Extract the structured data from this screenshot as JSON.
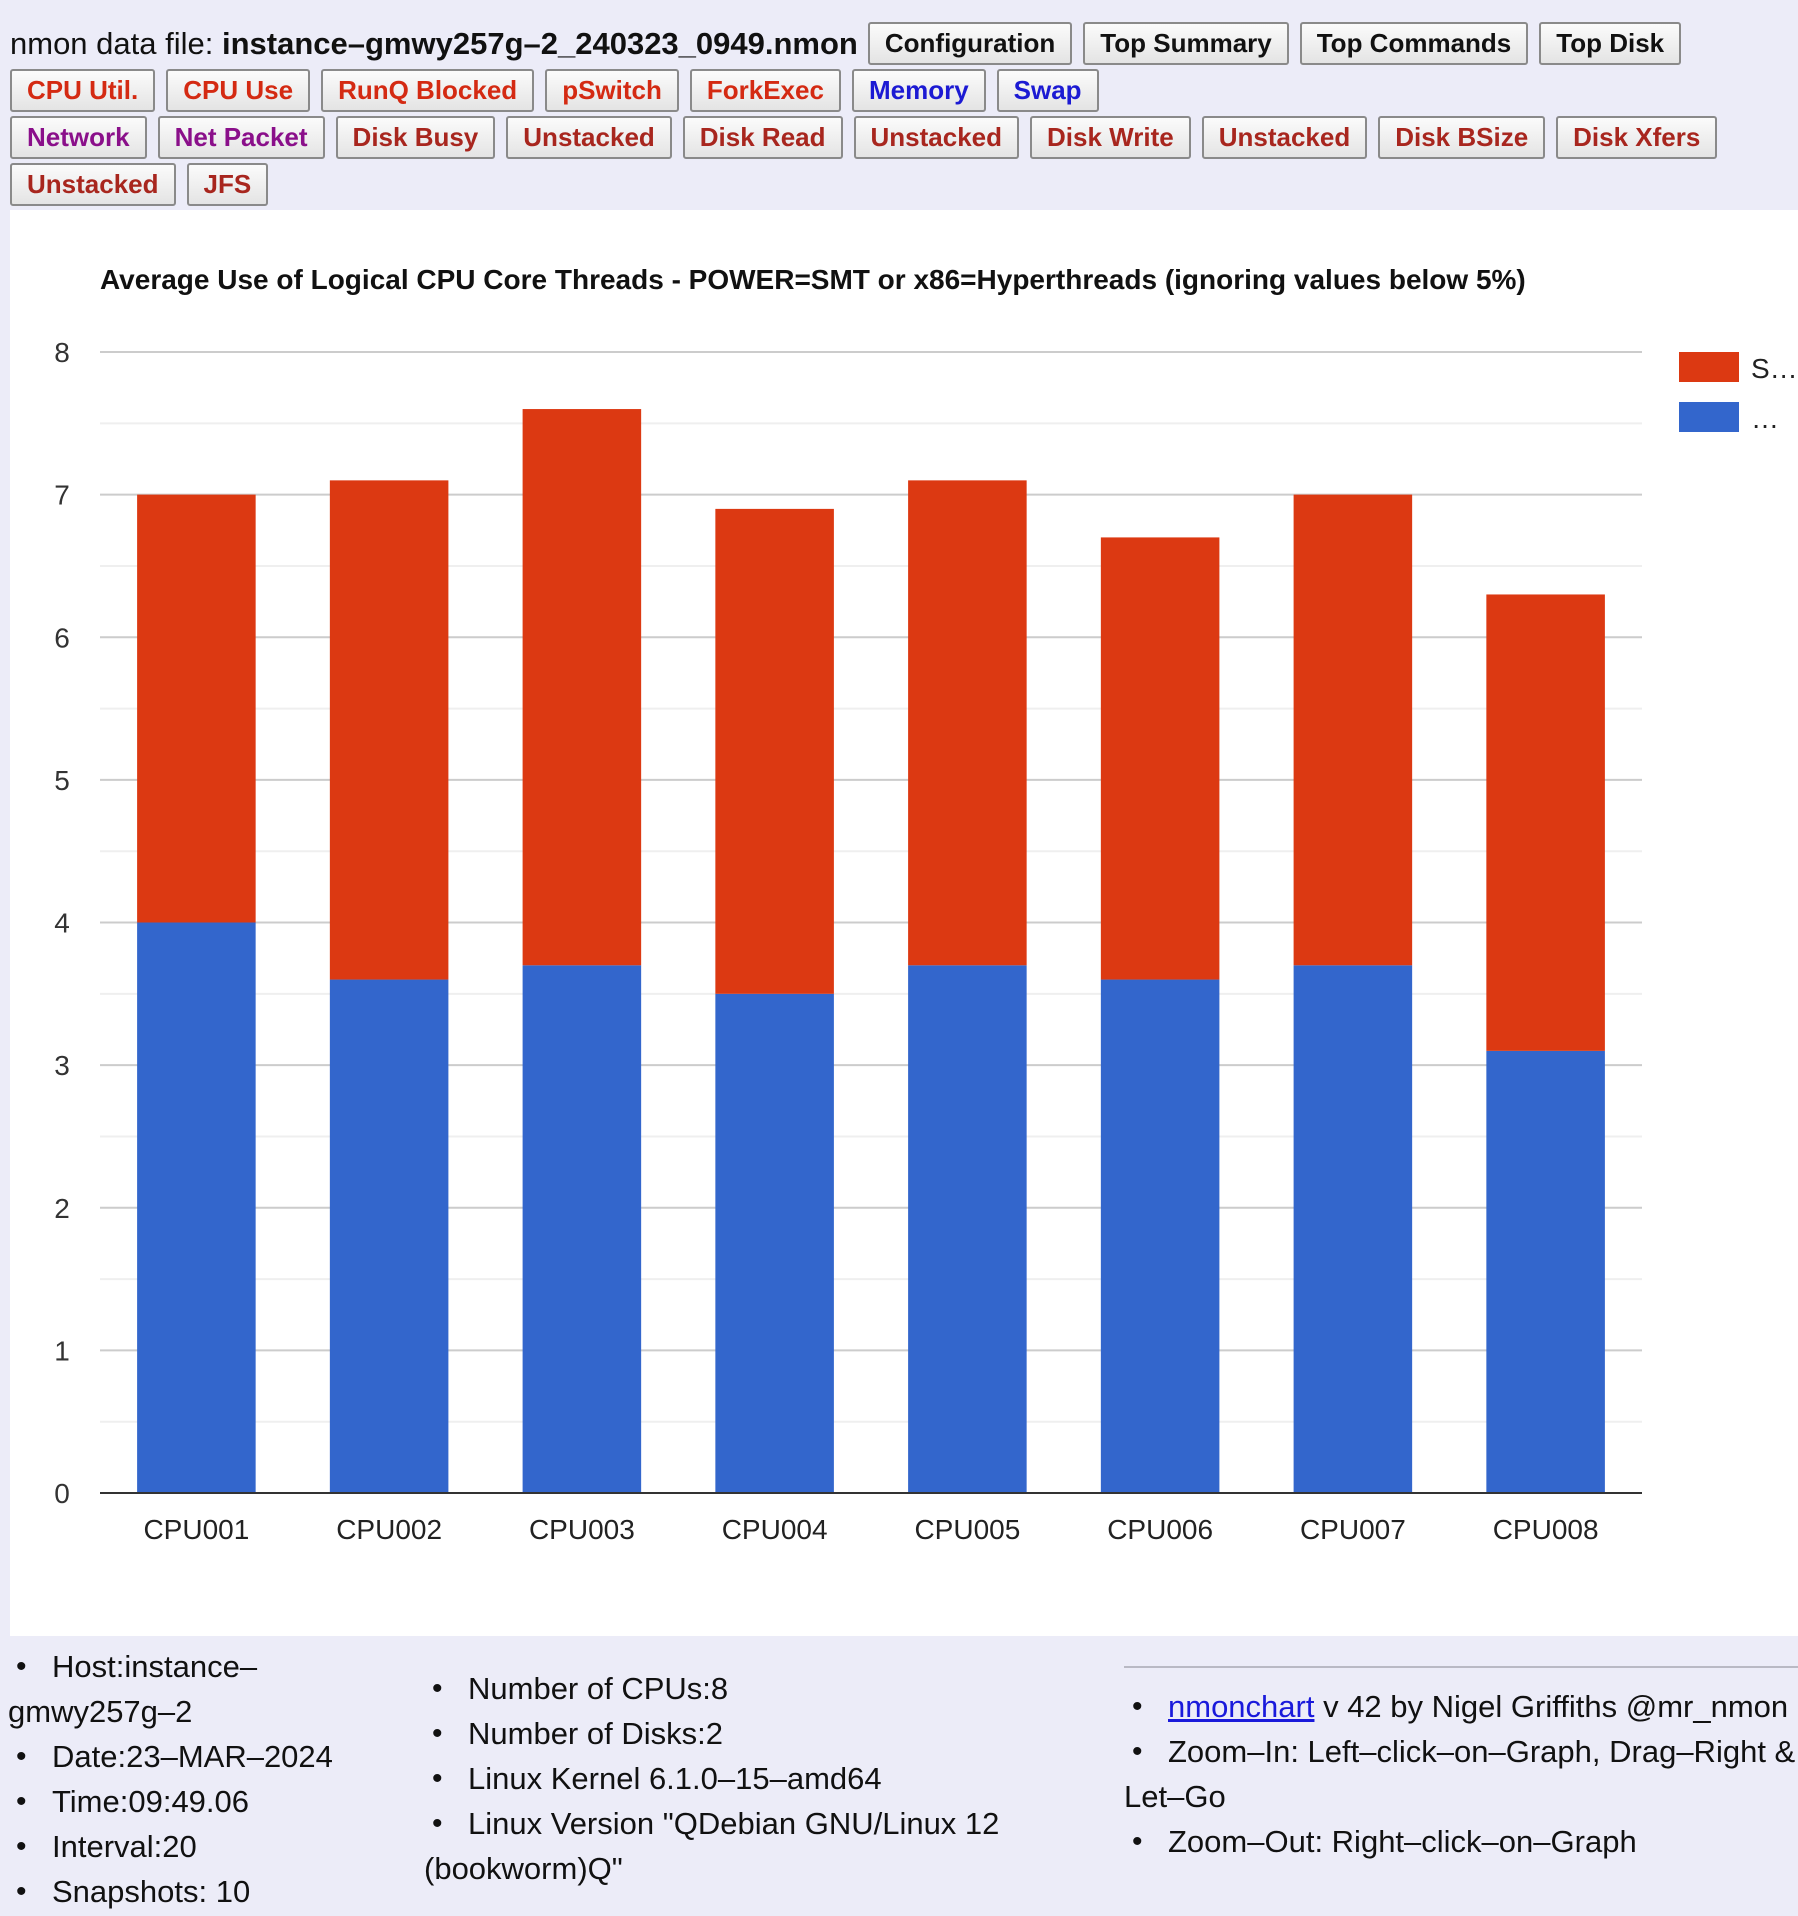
{
  "header": {
    "file_label": "nmon data file:",
    "file_name": "instance–gmwy257g–2_240323_0949.nmon",
    "buttons_row1": [
      {
        "label": "Configuration",
        "color": "#111111"
      },
      {
        "label": "Top Summary",
        "color": "#111111"
      },
      {
        "label": "Top Commands",
        "color": "#111111"
      },
      {
        "label": "Top Disk",
        "color": "#111111"
      }
    ],
    "buttons_row2": [
      {
        "label": "CPU Util.",
        "color": "#d42a12"
      },
      {
        "label": "CPU Use",
        "color": "#d42a12"
      },
      {
        "label": "RunQ Blocked",
        "color": "#d42a12"
      },
      {
        "label": "pSwitch",
        "color": "#d42a12"
      },
      {
        "label": "ForkExec",
        "color": "#d42a12"
      },
      {
        "label": "Memory",
        "color": "#1c1ad3"
      },
      {
        "label": "Swap",
        "color": "#1c1ad3"
      }
    ],
    "buttons_row3": [
      {
        "label": "Network",
        "color": "#8a0f8a"
      },
      {
        "label": "Net Packet",
        "color": "#8a0f8a"
      },
      {
        "label": "Disk Busy",
        "color": "#a8261e"
      },
      {
        "label": "Unstacked",
        "color": "#a8261e"
      },
      {
        "label": "Disk Read",
        "color": "#a8261e"
      },
      {
        "label": "Unstacked",
        "color": "#a8261e"
      },
      {
        "label": "Disk Write",
        "color": "#a8261e"
      },
      {
        "label": "Unstacked",
        "color": "#a8261e"
      },
      {
        "label": "Disk BSize",
        "color": "#a8261e"
      },
      {
        "label": "Disk Xfers",
        "color": "#a8261e"
      }
    ],
    "buttons_row4": [
      {
        "label": "Unstacked",
        "color": "#a8261e"
      },
      {
        "label": "JFS",
        "color": "#a8261e"
      }
    ]
  },
  "chart_data": {
    "type": "bar",
    "stacked": true,
    "title": "Average Use of Logical CPU Core Threads - POWER=SMT or x86=Hyperthreads (ignoring values below 5%)",
    "xlabel": "",
    "ylabel": "",
    "categories": [
      "CPU001",
      "CPU002",
      "CPU003",
      "CPU004",
      "CPU005",
      "CPU006",
      "CPU007",
      "CPU008"
    ],
    "series": [
      {
        "name": "…",
        "color": "#3366cc",
        "values": [
          4.0,
          3.6,
          3.7,
          3.5,
          3.7,
          3.6,
          3.7,
          3.1
        ]
      },
      {
        "name": "S…",
        "color": "#dc3912",
        "values": [
          3.0,
          3.5,
          3.9,
          3.4,
          3.4,
          3.1,
          3.3,
          3.2
        ]
      }
    ],
    "legend_order": [
      "S…",
      "…"
    ],
    "yticks": [
      0,
      1,
      2,
      3,
      4,
      5,
      6,
      7,
      8
    ],
    "ylim": [
      0,
      8
    ],
    "grid": true,
    "minor_grid": true,
    "legend_position": "right"
  },
  "info": {
    "host": "Host:instance–gmwy257g–2",
    "date": "Date:23–MAR–2024",
    "time": "Time:09:49.06",
    "interval": "Interval:20",
    "snapshots": "Snapshots: 10",
    "cpus": "Number of CPUs:8",
    "disks": "Number of Disks:2",
    "kernel": "Linux Kernel 6.1.0–15–amd64",
    "version": "Linux Version \"QDebian GNU/Linux 12 (bookworm)Q\"",
    "credit_link": "nmonchart",
    "credit_rest": " v 42 by Nigel Griffiths @mr_nmon",
    "zoom_in": "Zoom–In: Left–click–on–Graph, Drag–Right & Let–Go",
    "zoom_out": "Zoom–Out: Right–click–on–Graph"
  }
}
